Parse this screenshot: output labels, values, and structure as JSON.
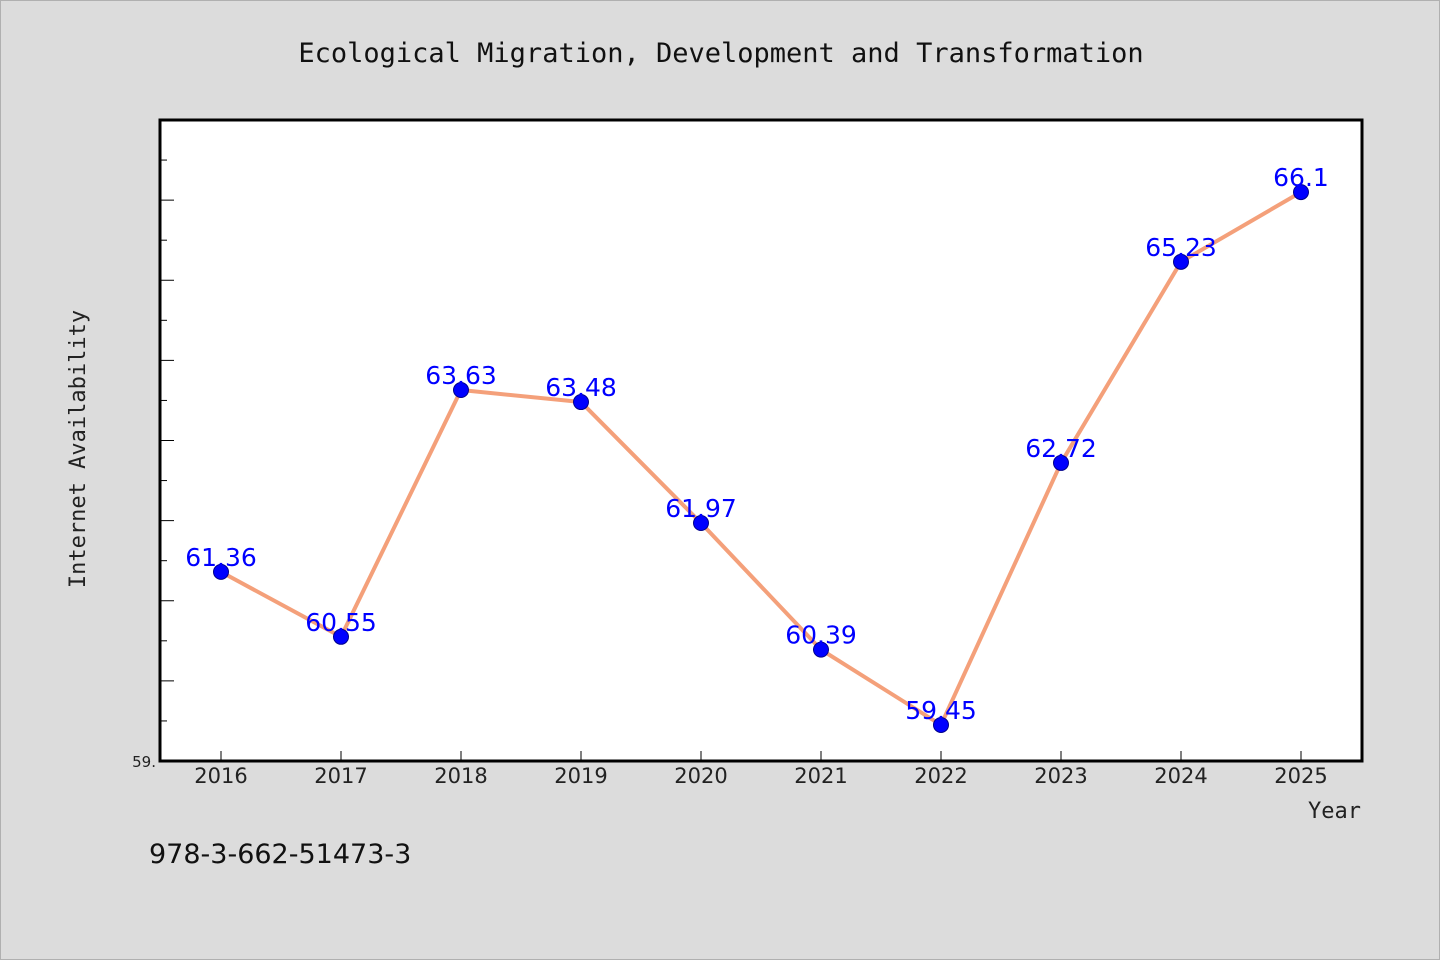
{
  "chart_data": {
    "type": "line",
    "title": "Ecological Migration, Development and Transformation",
    "xlabel": "Year",
    "ylabel": "Internet Availability",
    "categories": [
      "2016",
      "2017",
      "2018",
      "2019",
      "2020",
      "2021",
      "2022",
      "2023",
      "2024",
      "2025"
    ],
    "series": [
      {
        "values": [
          61.36,
          60.55,
          63.63,
          63.48,
          61.97,
          60.39,
          59.45,
          62.72,
          65.23,
          66.1
        ]
      }
    ],
    "data_labels": [
      "61.36",
      "60.55",
      "63.63",
      "63.48",
      "61.97",
      "60.39",
      "59.45",
      "62.72",
      "65.23",
      "66.1"
    ],
    "ylim": [
      59.0,
      67.0
    ],
    "y_tick_label_min": "59.",
    "grid": false,
    "line_color": "#f4a07a",
    "marker_color": "#0000ff",
    "label_color": "#0000ff"
  },
  "footer": {
    "isbn": "978-3-662-51473-3"
  }
}
